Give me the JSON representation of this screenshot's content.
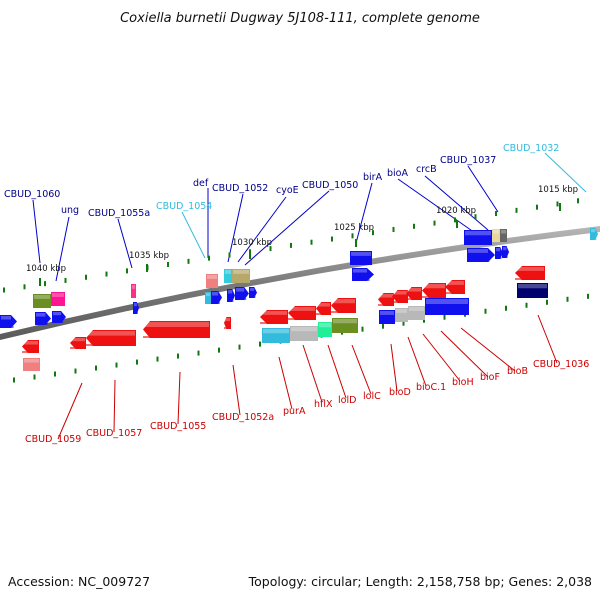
{
  "title": "Coxiella burnetii Dugway 5J108-111, complete genome",
  "footer": {
    "accession": "Accession: NC_009727",
    "summary": "Topology: circular; Length: 2,158,758 bp; Genes: 2,038"
  },
  "colors": {
    "forward_label": "#00008b",
    "reverse_label": "#cc0000",
    "highlight_label": "#33bbdd",
    "forward_gene": "#1010ee",
    "reverse_gene": "#ee1111",
    "backbone": "#808080",
    "tick": "#117711"
  },
  "kbp_ticks": [
    "1040 kbp",
    "1035 kbp",
    "1030 kbp",
    "1025 kbp",
    "1020 kbp",
    "1015 kbp"
  ],
  "forward_labels": [
    "CBUD_1060",
    "ung",
    "CBUD_1055a",
    "CBUD_1054",
    "def",
    "CBUD_1052",
    "cyoE",
    "CBUD_1050",
    "birA",
    "bioA",
    "crcB",
    "CBUD_1037",
    "CBUD_1032"
  ],
  "reverse_labels": [
    "CBUD_1059",
    "CBUD_1057",
    "CBUD_1055",
    "CBUD_1052a",
    "purA",
    "hflX",
    "lolD",
    "lolC",
    "bioD",
    "bioC.1",
    "bioH",
    "bioF",
    "bioB",
    "CBUD_1036"
  ]
}
